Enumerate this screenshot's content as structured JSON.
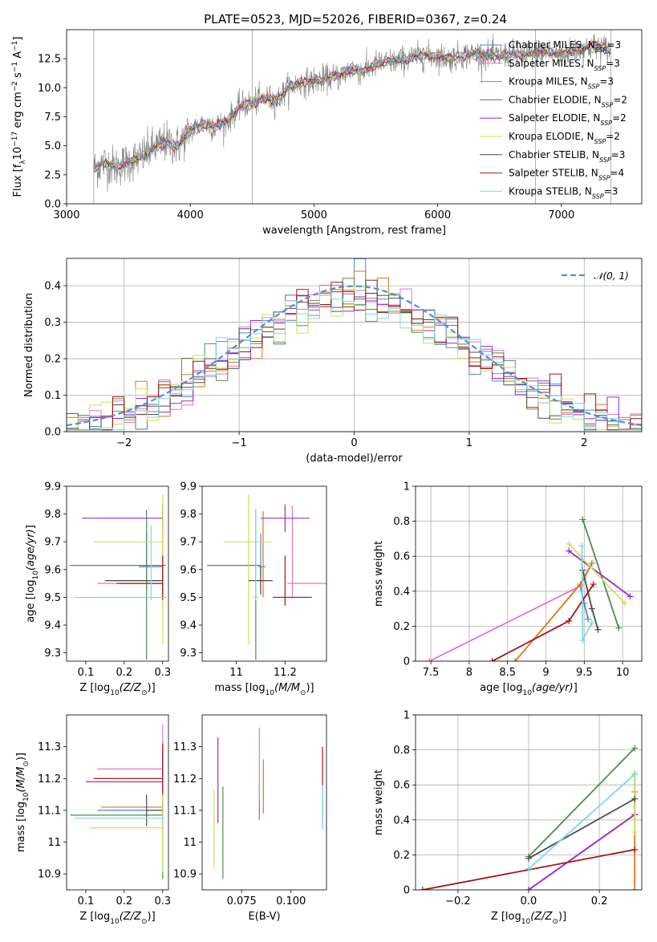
{
  "figure": {
    "title": "PLATE=0523, MJD=52026, FIBERID=0367, z=0.24"
  },
  "colors": {
    "Chabrier MILES": "#5b7fd6",
    "Salpeter MILES": "#e377c2",
    "Kroupa MILES": "#d47a1a",
    "Chabrier ELODIE": "#4f8a55",
    "Salpeter ELODIE": "#9a2cc8",
    "Kroupa ELODIE": "#cde05a",
    "Chabrier STELIB": "#4d4d4d",
    "Salpeter STELIB": "#a31515",
    "Kroupa STELIB": "#7fd8e0",
    "data": "#808080",
    "normal": "#5b8bd6"
  },
  "chart_data": [
    {
      "id": "spectrum",
      "type": "line",
      "xlabel": "wavelength [Angstrom, rest frame]",
      "ylabel": "Flux [f$_\\lambda$10$^{-17}$ erg cm$^{-2}$ s$^{-1}$ A$^{-1}$]",
      "ylabel_display": "Flux [fλ10⁻¹⁷ erg cm⁻² s⁻¹ A⁻¹]",
      "xlim": [
        3000,
        7650
      ],
      "ylim": [
        0,
        15
      ],
      "xticks": [
        3000,
        4000,
        5000,
        6000,
        7000
      ],
      "yticks": [
        0.0,
        2.5,
        5.0,
        7.5,
        10.0,
        12.5
      ],
      "yticklabels": [
        "0.0",
        "2.5",
        "5.0",
        "7.5",
        "10.0",
        "12.5"
      ],
      "legend": [
        "Chabrier MILES, N$_{SSP}$=3",
        "Salpeter MILES, N$_{SSP}$=3",
        "Kroupa MILES, N$_{SSP}$=3",
        "Chabrier ELODIE, N$_{SSP}$=2",
        "Salpeter ELODIE, N$_{SSP}$=2",
        "Kroupa ELODIE, N$_{SSP}$=2",
        "Chabrier STELIB, N$_{SSP}$=3",
        "Salpeter STELIB, N$_{SSP}$=4",
        "Kroupa STELIB, N$_{SSP}$=3"
      ],
      "legend_display": [
        "Chabrier MILES, N_SSP=3",
        "Salpeter MILES, N_SSP=3",
        "Kroupa MILES, N_SSP=3",
        "Chabrier ELODIE, N_SSP=2",
        "Salpeter ELODIE, N_SSP=2",
        "Kroupa ELODIE, N_SSP=2",
        "Chabrier STELIB, N_SSP=3",
        "Salpeter STELIB, N_SSP=4",
        "Kroupa STELIB, N_SSP=3"
      ],
      "legend_placement": "right",
      "continuum": {
        "x": [
          3220,
          3300,
          3400,
          3500,
          3600,
          3700,
          3800,
          3900,
          4000,
          4100,
          4200,
          4300,
          4400,
          4500,
          4600,
          4700,
          4800,
          4900,
          5000,
          5100,
          5200,
          5300,
          5400,
          5500,
          5600,
          5700,
          5800,
          5900,
          6000,
          6100,
          6200,
          6300,
          6400,
          6500,
          6600,
          6700,
          6800,
          6900,
          7000,
          7100,
          7200,
          7300,
          7400
        ],
        "y": [
          3.0,
          3.5,
          3.2,
          3.6,
          4.0,
          4.8,
          5.3,
          5.0,
          6.3,
          6.9,
          6.6,
          7.1,
          8.4,
          8.7,
          9.1,
          8.9,
          10.1,
          10.4,
          10.6,
          10.8,
          11.0,
          11.6,
          11.4,
          12.0,
          12.2,
          12.4,
          12.6,
          12.8,
          12.7,
          12.5,
          12.8,
          12.9,
          12.8,
          12.7,
          12.9,
          12.8,
          13.0,
          13.1,
          12.8,
          13.2,
          13.4,
          13.6,
          13.2
        ]
      }
    },
    {
      "id": "residuals",
      "type": "histogram",
      "xlabel": "(data-model)/error",
      "ylabel": "Normed distribution",
      "xlim": [
        -2.5,
        2.5
      ],
      "ylim": [
        0,
        0.475
      ],
      "grid": true,
      "xticks": [
        -2,
        -1,
        0,
        1,
        2
      ],
      "xticklabels": [
        "−2",
        "−1",
        "0",
        "1",
        "2"
      ],
      "yticks": [
        0.0,
        0.1,
        0.2,
        0.3,
        0.4
      ],
      "yticklabels": [
        "0.0",
        "0.1",
        "0.2",
        "0.3",
        "0.4"
      ],
      "legend": [
        "$\\mathcal{N}(0,1)$"
      ],
      "legend_display": [
        "𝒩(0, 1)"
      ],
      "legend_placement": "top-right",
      "bin_width": 0.1
    },
    {
      "id": "age-vs-Z",
      "type": "scatter",
      "xlabel": "Z [log$_{10}$(Z/Z$_\\odot$)]",
      "ylabel": "age  [log$_{10}$(age/yr)]",
      "xlim": [
        0.05,
        0.315
      ],
      "ylim": [
        9.27,
        9.9
      ],
      "xticks": [
        0.1,
        0.2,
        0.3
      ],
      "yticks": [
        9.3,
        9.4,
        9.5,
        9.6,
        9.7,
        9.8,
        9.9
      ],
      "points": [
        {
          "model": "Chabrier MILES",
          "x": 0.258,
          "y": 9.61,
          "xerr": [
            0.02,
            0.04
          ],
          "yerr": [
            0.08,
            0.12
          ]
        },
        {
          "model": "Salpeter MILES",
          "x": 0.3,
          "y": 9.55,
          "xerr": [
            0.17,
            0.0
          ],
          "yerr": [
            0.05,
            0.28
          ]
        },
        {
          "model": "Kroupa MILES",
          "x": 0.3,
          "y": 9.56,
          "xerr": [
            0.13,
            0.0
          ],
          "yerr": [
            0.06,
            0.25
          ]
        },
        {
          "model": "Chabrier ELODIE",
          "x": 0.258,
          "y": 9.615,
          "xerr": [
            0.2,
            0.05
          ],
          "yerr": [
            0.34,
            0.2
          ]
        },
        {
          "model": "Salpeter ELODIE",
          "x": 0.3,
          "y": 9.785,
          "xerr": [
            0.21,
            0.0
          ],
          "yerr": [
            0.05,
            0.05
          ]
        },
        {
          "model": "Kroupa ELODIE",
          "x": 0.3,
          "y": 9.7,
          "xerr": [
            0.18,
            0.0
          ],
          "yerr": [
            0.37,
            0.17
          ]
        },
        {
          "model": "Chabrier STELIB",
          "x": 0.3,
          "y": 9.56,
          "xerr": [
            0.15,
            0.0
          ],
          "yerr": [
            0.05,
            0.05
          ]
        },
        {
          "model": "Salpeter STELIB",
          "x": 0.3,
          "y": 9.55,
          "xerr": [
            0.12,
            0.0
          ],
          "yerr": [
            0.06,
            0.1
          ]
        },
        {
          "model": "Kroupa STELIB",
          "x": 0.27,
          "y": 9.5,
          "xerr": [
            0.2,
            0.04
          ],
          "yerr": [
            0.01,
            0.26
          ]
        }
      ]
    },
    {
      "id": "age-vs-mass",
      "type": "scatter",
      "xlabel": "mass [log$_{10}$(M/M$_\\odot$)]",
      "ylabel": "",
      "xlim": [
        10.86,
        11.37
      ],
      "ylim": [
        9.27,
        9.9
      ],
      "xticks": [
        11.0,
        11.2
      ],
      "yticks": [
        9.3,
        9.4,
        9.5,
        9.6,
        9.7,
        9.8,
        9.9
      ],
      "points": [
        {
          "model": "Chabrier MILES",
          "x": 11.1,
          "y": 9.61,
          "xerr": [
            0.01,
            0.02
          ],
          "yerr": [
            0.08,
            0.12
          ]
        },
        {
          "model": "Salpeter MILES",
          "x": 11.23,
          "y": 9.55,
          "xerr": [
            0.02,
            0.14
          ],
          "yerr": [
            0.05,
            0.28
          ]
        },
        {
          "model": "Kroupa MILES",
          "x": 11.11,
          "y": 9.56,
          "xerr": [
            0.01,
            0.02
          ],
          "yerr": [
            0.06,
            0.25
          ]
        },
        {
          "model": "Chabrier ELODIE",
          "x": 11.08,
          "y": 9.615,
          "xerr": [
            0.2,
            0.02
          ],
          "yerr": [
            0.34,
            0.2
          ]
        },
        {
          "model": "Salpeter ELODIE",
          "x": 11.2,
          "y": 9.785,
          "xerr": [
            0.1,
            0.1
          ],
          "yerr": [
            0.05,
            0.05
          ]
        },
        {
          "model": "Kroupa ELODIE",
          "x": 11.05,
          "y": 9.7,
          "xerr": [
            0.1,
            0.1
          ],
          "yerr": [
            0.37,
            0.17
          ]
        },
        {
          "model": "Chabrier STELIB",
          "x": 11.1,
          "y": 9.56,
          "xerr": [
            0.05,
            0.05
          ],
          "yerr": [
            0.05,
            0.05
          ]
        },
        {
          "model": "Salpeter STELIB",
          "x": 11.2,
          "y": 9.5,
          "xerr": [
            0.05,
            0.11
          ],
          "yerr": [
            0.03,
            0.15
          ]
        },
        {
          "model": "Kroupa STELIB",
          "x": 11.08,
          "y": 9.5,
          "xerr": [
            0.01,
            0.01
          ],
          "yerr": [
            0.01,
            0.32
          ]
        }
      ]
    },
    {
      "id": "weight-vs-age",
      "type": "line",
      "xlabel": "age  [log$_{10}$(age/yr)]",
      "ylabel": "mass weight",
      "xlim": [
        7.3,
        10.25
      ],
      "ylim": [
        0,
        1.0
      ],
      "grid": true,
      "xticks": [
        7.5,
        8.0,
        8.5,
        9.0,
        9.5,
        10.0
      ],
      "yticks": [
        0.0,
        0.2,
        0.4,
        0.6,
        0.8,
        1.0
      ],
      "series": [
        {
          "model": "Chabrier MILES",
          "x": [
            9.45,
            9.5,
            9.55
          ],
          "y": [
            0.43,
            0.33,
            0.24
          ]
        },
        {
          "model": "Salpeter MILES",
          "x": [
            7.48,
            9.45,
            9.6
          ],
          "y": [
            0.0,
            0.43,
            0.56
          ]
        },
        {
          "model": "Kroupa MILES",
          "x": [
            8.6,
            9.45,
            9.6
          ],
          "y": [
            0.0,
            0.44,
            0.56
          ]
        },
        {
          "model": "Chabrier ELODIE",
          "x": [
            9.48,
            9.95
          ],
          "y": [
            0.81,
            0.19
          ]
        },
        {
          "model": "Salpeter ELODIE",
          "x": [
            9.3,
            10.1
          ],
          "y": [
            0.63,
            0.37
          ]
        },
        {
          "model": "Kroupa ELODIE",
          "x": [
            9.3,
            10.03
          ],
          "y": [
            0.67,
            0.33
          ]
        },
        {
          "model": "Chabrier STELIB",
          "x": [
            9.48,
            9.6,
            9.68
          ],
          "y": [
            0.52,
            0.3,
            0.18
          ]
        },
        {
          "model": "Salpeter STELIB",
          "x": [
            8.3,
            9.3,
            9.62
          ],
          "y": [
            0.0,
            0.23,
            0.44
          ]
        },
        {
          "model": "Kroupa STELIB",
          "x": [
            9.47,
            9.48,
            9.6
          ],
          "y": [
            0.66,
            0.12,
            0.22
          ]
        }
      ]
    },
    {
      "id": "mass-vs-Z",
      "type": "scatter",
      "xlabel": "Z [log$_{10}$(Z/Z$_\\odot$)]",
      "ylabel": "mass [log$_{10}$(M/M$_\\odot$)]",
      "xlim": [
        0.05,
        0.315
      ],
      "ylim": [
        10.85,
        11.4
      ],
      "xticks": [
        0.1,
        0.2,
        0.3
      ],
      "yticks": [
        10.9,
        11.0,
        11.1,
        11.2,
        11.3
      ],
      "points": [
        {
          "model": "Chabrier MILES",
          "x": 0.3,
          "y": 11.1,
          "xerr": [
            0.17,
            0.0
          ],
          "yerr": [
            0.01,
            0.02
          ]
        },
        {
          "model": "Salpeter MILES",
          "x": 0.3,
          "y": 11.23,
          "xerr": [
            0.17,
            0.0
          ],
          "yerr": [
            0.02,
            0.14
          ]
        },
        {
          "model": "Kroupa MILES",
          "x": 0.3,
          "y": 11.11,
          "xerr": [
            0.16,
            0.0
          ],
          "yerr": [
            0.01,
            0.02
          ]
        },
        {
          "model": "Chabrier ELODIE",
          "x": 0.3,
          "y": 11.085,
          "xerr": [
            0.24,
            0.0
          ],
          "yerr": [
            0.2,
            0.02
          ]
        },
        {
          "model": "Salpeter ELODIE",
          "x": 0.3,
          "y": 11.19,
          "xerr": [
            0.2,
            0.0
          ],
          "yerr": [
            0.1,
            0.1
          ]
        },
        {
          "model": "Kroupa ELODIE",
          "x": 0.3,
          "y": 11.045,
          "xerr": [
            0.19,
            0.0
          ],
          "yerr": [
            0.14,
            0.12
          ]
        },
        {
          "model": "Chabrier STELIB",
          "x": 0.258,
          "y": 11.1,
          "xerr": [
            0.0,
            0.04
          ],
          "yerr": [
            0.05,
            0.05
          ]
        },
        {
          "model": "Salpeter STELIB",
          "x": 0.3,
          "y": 11.2,
          "xerr": [
            0.18,
            0.0
          ],
          "yerr": [
            0.05,
            0.11
          ]
        },
        {
          "model": "Kroupa STELIB",
          "x": 0.3,
          "y": 11.075,
          "xerr": [
            0.23,
            0.0
          ],
          "yerr": [
            0.01,
            0.01
          ]
        }
      ]
    },
    {
      "id": "mass-vs-ebv",
      "type": "scatter",
      "xlabel": "E(B-V)",
      "ylabel": "",
      "xlim": [
        0.055,
        0.118
      ],
      "ylim": [
        10.85,
        11.4
      ],
      "xticks": [
        0.075,
        0.1
      ],
      "xticklabels": [
        "0.075",
        "0.100"
      ],
      "yticks": [
        10.9,
        11.0,
        11.1,
        11.2,
        11.3
      ],
      "points": [
        {
          "model": "Chabrier MILES",
          "x": 0.084,
          "y": 11.1,
          "yerr": [
            0.03,
            0.08
          ]
        },
        {
          "model": "Salpeter MILES",
          "x": 0.084,
          "y": 11.23,
          "yerr": [
            0.1,
            0.13
          ]
        },
        {
          "model": "Kroupa MILES",
          "x": 0.086,
          "y": 11.15,
          "yerr": [
            0.06,
            0.11
          ]
        },
        {
          "model": "Chabrier ELODIE",
          "x": 0.0655,
          "y": 11.085,
          "yerr": [
            0.2,
            0.09
          ]
        },
        {
          "model": "Salpeter ELODIE",
          "x": 0.063,
          "y": 11.19,
          "yerr": [
            0.13,
            0.14
          ]
        },
        {
          "model": "Kroupa ELODIE",
          "x": 0.061,
          "y": 11.045,
          "yerr": [
            0.13,
            0.12
          ]
        },
        {
          "model": "Chabrier STELIB",
          "x": 0.116,
          "y": 11.1,
          "yerr": [
            0.05,
            0.05
          ]
        },
        {
          "model": "Salpeter STELIB",
          "x": 0.116,
          "y": 11.2,
          "yerr": [
            0.05,
            0.1
          ]
        },
        {
          "model": "Kroupa STELIB",
          "x": 0.116,
          "y": 11.1,
          "yerr": [
            0.06,
            0.08
          ]
        }
      ]
    },
    {
      "id": "weight-vs-Z",
      "type": "line",
      "xlabel": "Z [log$_{10}$(Z/Z$_\\odot$)]",
      "ylabel": "mass weight",
      "xlim": [
        -0.32,
        0.32
      ],
      "ylim": [
        0,
        1.0
      ],
      "grid": true,
      "xticks": [
        -0.2,
        0.0,
        0.2
      ],
      "xticklabels": [
        "−0.2",
        "0.0",
        "0.2"
      ],
      "yticks": [
        0.0,
        0.2,
        0.4,
        0.6,
        0.8,
        1.0
      ],
      "series": [
        {
          "model": "Chabrier MILES",
          "x": [
            0.3,
            0.3
          ],
          "y": [
            0.43,
            0.66
          ]
        },
        {
          "model": "Salpeter MILES",
          "x": [
            0.0,
            0.3
          ],
          "y": [
            0.0,
            0.43
          ]
        },
        {
          "model": "Kroupa MILES",
          "x": [
            0.3,
            0.3
          ],
          "y": [
            0.0,
            0.56
          ]
        },
        {
          "model": "Chabrier ELODIE",
          "x": [
            0.0,
            0.3
          ],
          "y": [
            0.19,
            0.81
          ]
        },
        {
          "model": "Salpeter ELODIE",
          "x": [
            0.0,
            0.3
          ],
          "y": [
            0.0,
            0.43
          ]
        },
        {
          "model": "Kroupa ELODIE",
          "x": [
            0.3,
            0.3
          ],
          "y": [
            0.33,
            0.67
          ]
        },
        {
          "model": "Chabrier STELIB",
          "x": [
            0.0,
            0.3
          ],
          "y": [
            0.18,
            0.52
          ]
        },
        {
          "model": "Salpeter STELIB",
          "x": [
            -0.3,
            0.3
          ],
          "y": [
            0.0,
            0.23
          ]
        },
        {
          "model": "Kroupa STELIB",
          "x": [
            0.0,
            0.3
          ],
          "y": [
            0.12,
            0.66
          ]
        }
      ]
    }
  ]
}
